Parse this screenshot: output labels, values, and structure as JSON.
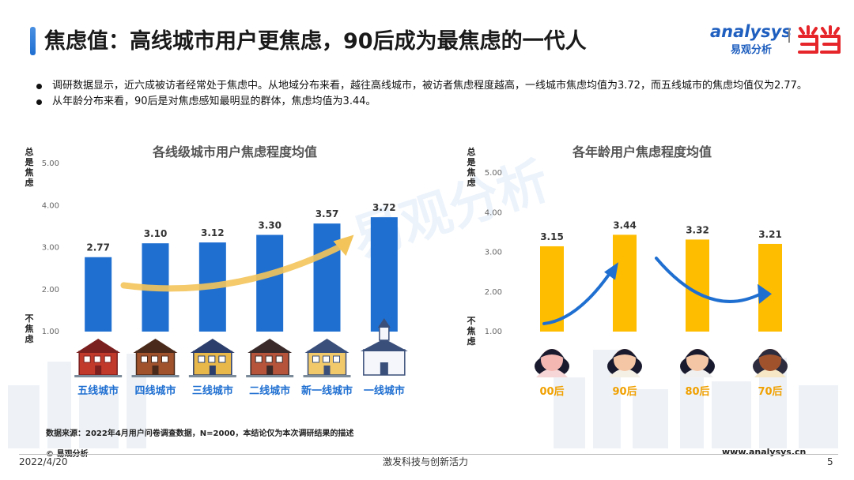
{
  "header": {
    "title": "焦虑值：高线城市用户更焦虑，90后成为最焦虑的一代人",
    "logo_en": "analysys",
    "logo_cn": "易观分析",
    "partner_logo": "当当"
  },
  "bullets": [
    "调研数据显示，近六成被访者经常处于焦虑中。从地域分布来看，越往高线城市，被访者焦虑程度越高，一线城市焦虑均值为3.72，而五线城市的焦虑均值仅为2.77。",
    "从年龄分布来看，90后是对焦虑感知最明显的群体，焦虑均值为3.44。"
  ],
  "watermark": "易观分析",
  "chart_data": [
    {
      "type": "bar",
      "title": "各线级城市用户焦虑程度均值",
      "categories": [
        "五线城市",
        "四线城市",
        "三线城市",
        "二线城市",
        "新一线城市",
        "一线城市"
      ],
      "values": [
        2.77,
        3.1,
        3.12,
        3.3,
        3.57,
        3.72
      ],
      "value_labels": [
        "2.77",
        "3.10",
        "3.12",
        "3.30",
        "3.57",
        "3.72"
      ],
      "yticks": [
        "1.00",
        "2.00",
        "3.00",
        "4.00",
        "5.00"
      ],
      "ylim": [
        1,
        5
      ],
      "ylabel_top": "总是焦虑",
      "ylabel_bottom": "不焦虑",
      "color": "#1f6fd1",
      "label_color": "#1f6fd1",
      "grid": false,
      "icons": [
        "house-icon",
        "house-icon",
        "house-icon",
        "house-icon",
        "house-icon",
        "church-icon"
      ]
    },
    {
      "type": "bar",
      "title": "各年龄用户焦虑程度均值",
      "categories": [
        "00后",
        "90后",
        "80后",
        "70后"
      ],
      "values": [
        3.15,
        3.44,
        3.32,
        3.21
      ],
      "value_labels": [
        "3.15",
        "3.44",
        "3.32",
        "3.21"
      ],
      "yticks": [
        "1.00",
        "2.00",
        "3.00",
        "4.00",
        "5.00"
      ],
      "ylim": [
        1,
        5
      ],
      "ylabel_top": "总是焦虑",
      "ylabel_bottom": "不焦虑",
      "color": "#ffbd00",
      "label_color": "#f0a000",
      "grid": false,
      "icons": [
        "person-icon",
        "person-icon",
        "person-icon",
        "person-icon"
      ]
    }
  ],
  "footer": {
    "source": "数据来源：2022年4月用户问卷调查数据，N=2000，本结论仅为本次调研结果的描述",
    "copyright": "© 易观分析",
    "date": "2022/4/20",
    "slogan": "激发科技与创新活力",
    "website": "www.analysys.cn",
    "page": "5"
  }
}
